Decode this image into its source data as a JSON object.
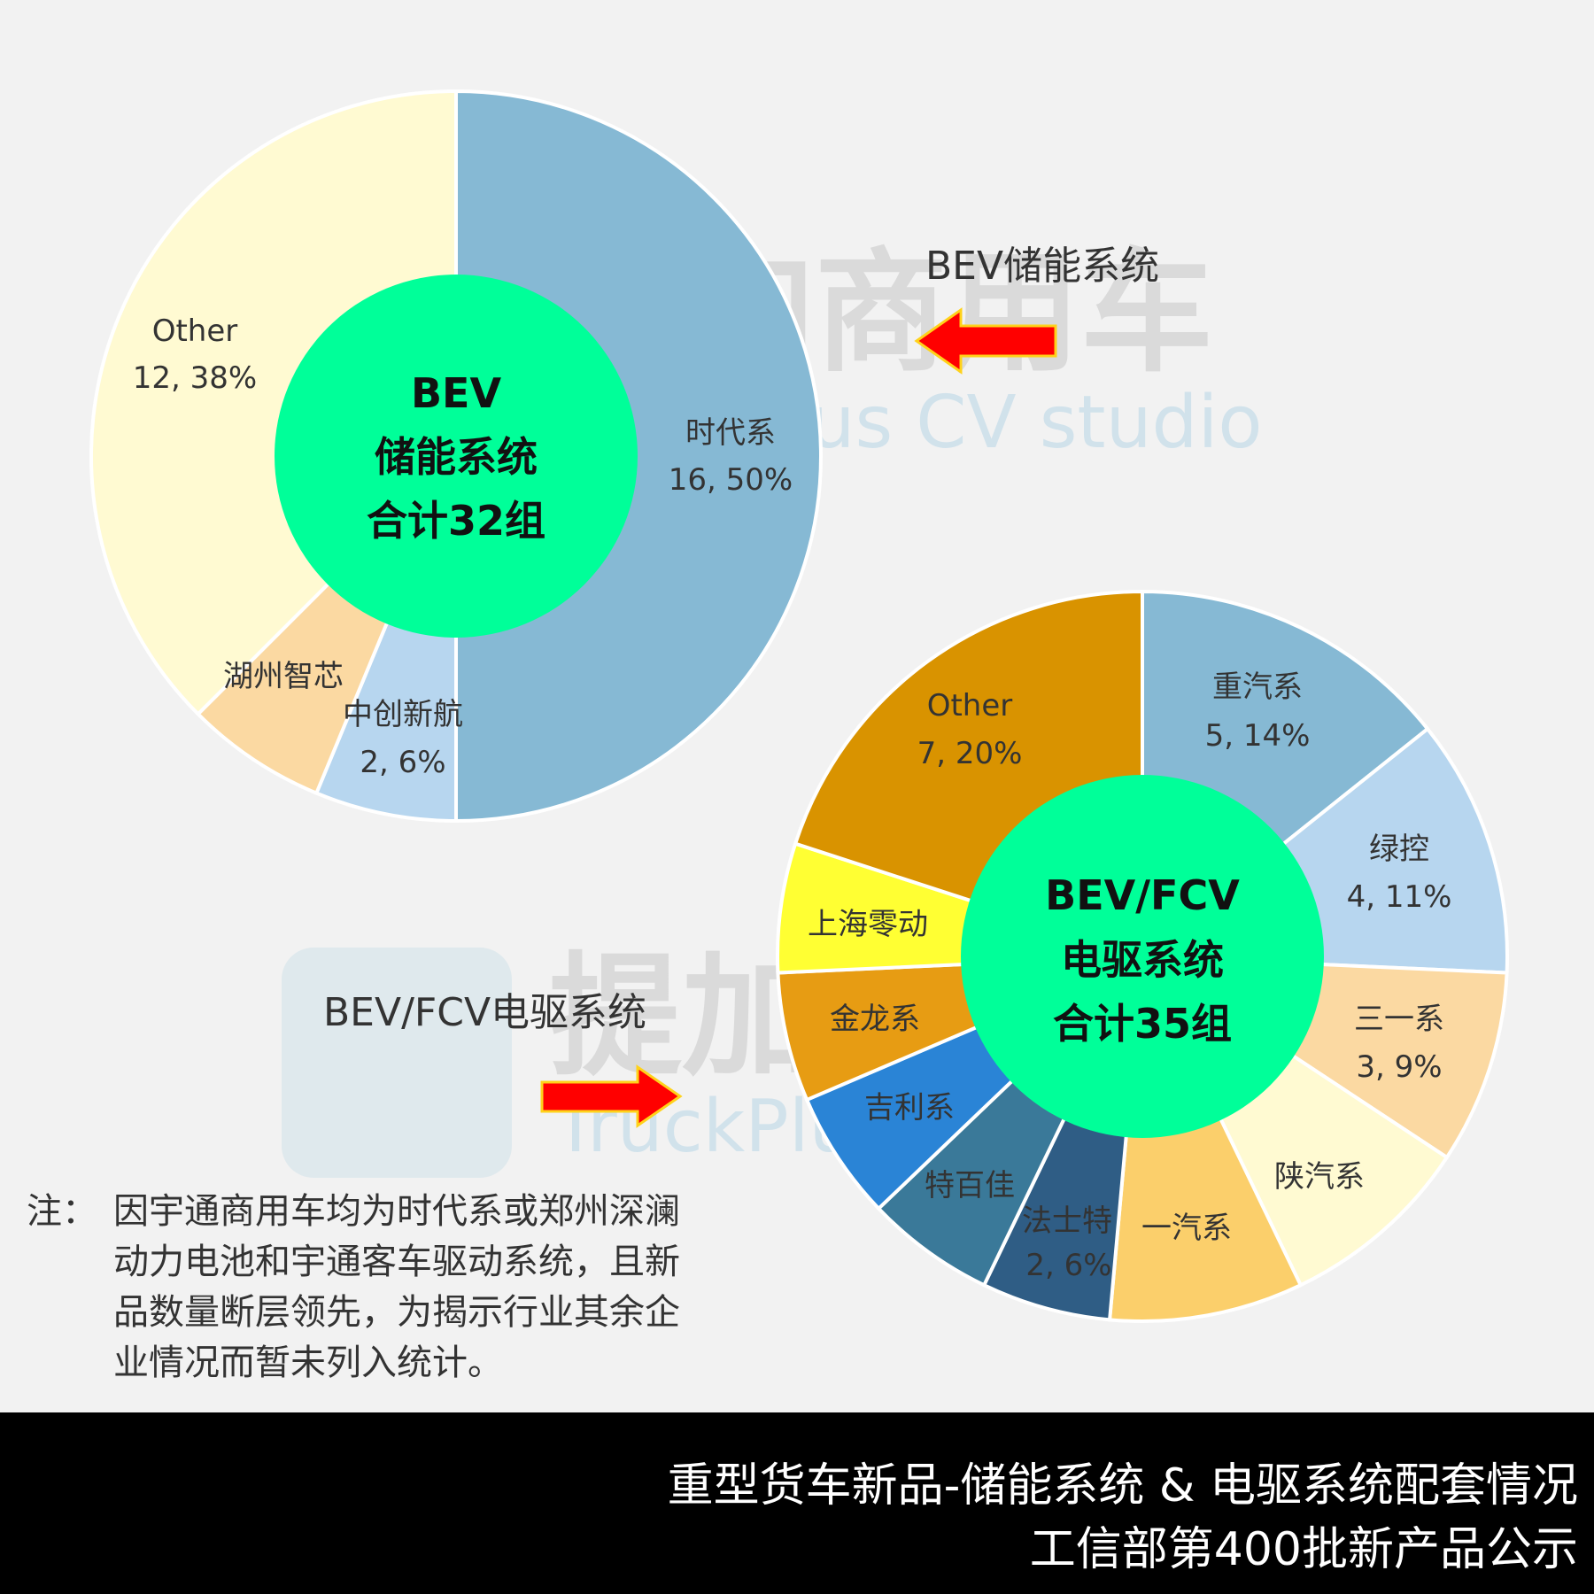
{
  "watermark": {
    "brand_cn": "提加商用车",
    "brand_en": "TruckPlus CV studio"
  },
  "chart_data": [
    {
      "type": "pie",
      "variant": "donut",
      "title": "BEV储能系统",
      "center_lines": [
        "BEV",
        "储能系统",
        "合计32组"
      ],
      "total": 32,
      "slices": [
        {
          "name": "时代系",
          "value": 16,
          "percent": "50%",
          "label": "16, 50%",
          "color": "#86b9d4"
        },
        {
          "name": "中创新航",
          "value": 2,
          "percent": "6%",
          "label": "2, 6%",
          "color": "#b7d6ef"
        },
        {
          "name": "湖州智芯",
          "value": 2,
          "percent": "",
          "label": "",
          "color": "#fbd9a2"
        },
        {
          "name": "Other",
          "value": 12,
          "percent": "38%",
          "label": "12, 38%",
          "color": "#fffad2"
        }
      ]
    },
    {
      "type": "pie",
      "variant": "donut",
      "title": "BEV/FCV电驱系统",
      "center_lines": [
        "BEV/FCV",
        "电驱系统",
        "合计35组"
      ],
      "total": 35,
      "slices": [
        {
          "name": "重汽系",
          "value": 5,
          "percent": "14%",
          "label": "5, 14%",
          "color": "#86b9d4"
        },
        {
          "name": "绿控",
          "value": 4,
          "percent": "11%",
          "label": "4, 11%",
          "color": "#b7d6ef"
        },
        {
          "name": "三一系",
          "value": 3,
          "percent": "9%",
          "label": "3, 9%",
          "color": "#fbd9a2"
        },
        {
          "name": "陕汽系",
          "value": 3,
          "percent": "",
          "label": "",
          "color": "#fffad2"
        },
        {
          "name": "一汽系",
          "value": 3,
          "percent": "",
          "label": "",
          "color": "#fbcf6b"
        },
        {
          "name": "法士特",
          "value": 2,
          "percent": "6%",
          "label": "2, 6%",
          "color": "#2f5d85"
        },
        {
          "name": "特百佳",
          "value": 2,
          "percent": "",
          "label": "",
          "color": "#3a7999"
        },
        {
          "name": "吉利系",
          "value": 2,
          "percent": "",
          "label": "",
          "color": "#2a84d6"
        },
        {
          "name": "金龙系",
          "value": 2,
          "percent": "",
          "label": "",
          "color": "#e79c13"
        },
        {
          "name": "上海零动",
          "value": 2,
          "percent": "",
          "label": "",
          "color": "#ffff33"
        },
        {
          "name": "Other",
          "value": 7,
          "percent": "20%",
          "label": "7, 20%",
          "color": "#d99300"
        }
      ]
    }
  ],
  "center_color": "#00ff99",
  "arrow_color": "#ff0000",
  "note": {
    "prefix": "注：",
    "lines": [
      "因宇通商用车均为时代系或郑州深澜",
      "动力电池和宇通客车驱动系统，且新",
      "品数量断层领先，为揭示行业其余企",
      "业情况而暂未列入统计。"
    ]
  },
  "footer": {
    "line1": "重型货车新品-储能系统 & 电驱系统配套情况",
    "line2": "工信部第400批新产品公示"
  }
}
